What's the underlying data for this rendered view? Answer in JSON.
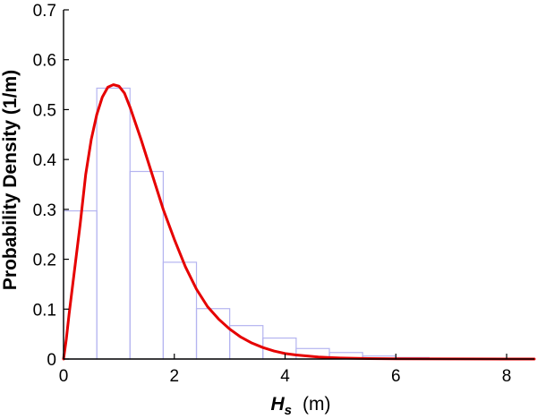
{
  "chart_data": {
    "type": "bar",
    "title": "",
    "xlabel": {
      "symbol": "H",
      "subscript": "s",
      "unit": "(m)"
    },
    "ylabel": "Probability Density (1/m)",
    "xlim": [
      0,
      8.5
    ],
    "ylim": [
      0,
      0.7
    ],
    "x_ticks": [
      "0",
      "2",
      "4",
      "6",
      "8"
    ],
    "y_ticks": [
      "0",
      "0.1",
      "0.2",
      "0.3",
      "0.4",
      "0.5",
      "0.6",
      "0.7"
    ],
    "grid": false,
    "legend": "none",
    "colors": {
      "histogram_edge": "#b4b4f0",
      "curve": "#e60000",
      "axes": "#000000"
    },
    "series": [
      {
        "type": "histogram",
        "bin_width": 0.6,
        "bins": [
          {
            "x0": 0.0,
            "x1": 0.6,
            "value": 0.297
          },
          {
            "x0": 0.6,
            "x1": 1.2,
            "value": 0.543
          },
          {
            "x0": 1.2,
            "x1": 1.8,
            "value": 0.376
          },
          {
            "x0": 1.8,
            "x1": 2.4,
            "value": 0.194
          },
          {
            "x0": 2.4,
            "x1": 3.0,
            "value": 0.101
          },
          {
            "x0": 3.0,
            "x1": 3.6,
            "value": 0.067
          },
          {
            "x0": 3.6,
            "x1": 4.2,
            "value": 0.042
          },
          {
            "x0": 4.2,
            "x1": 4.8,
            "value": 0.021
          },
          {
            "x0": 4.8,
            "x1": 5.4,
            "value": 0.013
          },
          {
            "x0": 5.4,
            "x1": 6.0,
            "value": 0.006
          },
          {
            "x0": 6.0,
            "x1": 6.6,
            "value": 0.003
          },
          {
            "x0": 6.6,
            "x1": 7.2,
            "value": 0.001
          },
          {
            "x0": 7.2,
            "x1": 7.8,
            "value": 0.001
          },
          {
            "x0": 7.8,
            "x1": 8.4,
            "value": 0.0005
          }
        ]
      },
      {
        "type": "line",
        "x": [
          0.0,
          0.05,
          0.1,
          0.2,
          0.3,
          0.4,
          0.5,
          0.6,
          0.7,
          0.8,
          0.9,
          1.0,
          1.1,
          1.2,
          1.4,
          1.6,
          1.8,
          2.0,
          2.2,
          2.4,
          2.6,
          2.8,
          3.0,
          3.2,
          3.4,
          3.6,
          3.8,
          4.0,
          4.2,
          4.4,
          4.6,
          4.8,
          5.0,
          5.5,
          6.0,
          7.0,
          8.0,
          8.5
        ],
        "y": [
          0.0,
          0.04,
          0.09,
          0.18,
          0.27,
          0.37,
          0.44,
          0.49,
          0.525,
          0.545,
          0.55,
          0.547,
          0.533,
          0.505,
          0.44,
          0.37,
          0.3,
          0.24,
          0.185,
          0.14,
          0.105,
          0.08,
          0.06,
          0.044,
          0.032,
          0.023,
          0.016,
          0.011,
          0.008,
          0.006,
          0.004,
          0.003,
          0.002,
          0.001,
          0.0005,
          0.0002,
          0.0001,
          0.0
        ]
      }
    ]
  }
}
